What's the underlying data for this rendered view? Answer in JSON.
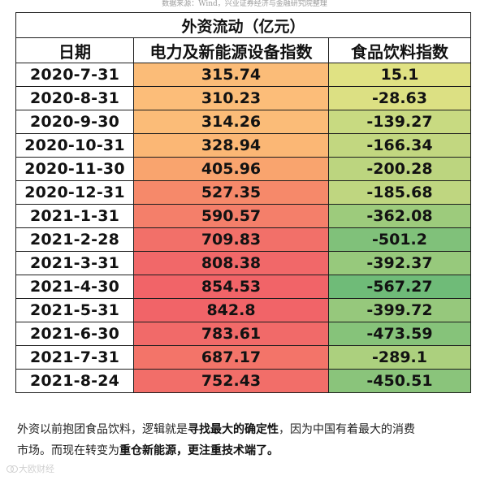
{
  "source_note": "数据来源：Wind，兴业证券经济与金融研究院整理",
  "table": {
    "caption": "外资流动（亿元）",
    "headers": [
      "日期",
      "电力及新能源设备指数",
      "食品饮料指数"
    ],
    "rows": [
      {
        "date": "2020-7-31",
        "power": "315.74",
        "food": "15.1",
        "power_color": "#fbbc78",
        "food_color": "#e0e283"
      },
      {
        "date": "2020-8-31",
        "power": "310.23",
        "food": "-28.63",
        "power_color": "#fcbd79",
        "food_color": "#dce083"
      },
      {
        "date": "2020-9-30",
        "power": "314.26",
        "food": "-139.27",
        "power_color": "#fbbc78",
        "food_color": "#c8da81"
      },
      {
        "date": "2020-10-31",
        "power": "328.94",
        "food": "-166.34",
        "power_color": "#fbb775",
        "food_color": "#c2d780"
      },
      {
        "date": "2020-11-30",
        "power": "405.96",
        "food": "-200.28",
        "power_color": "#f9a46e",
        "food_color": "#bcd57f"
      },
      {
        "date": "2020-12-31",
        "power": "527.35",
        "food": "-185.68",
        "power_color": "#f6896a",
        "food_color": "#bfd680"
      },
      {
        "date": "2021-1-31",
        "power": "590.57",
        "food": "-362.08",
        "power_color": "#f47f6a",
        "food_color": "#9dcb7c"
      },
      {
        "date": "2021-2-28",
        "power": "709.83",
        "food": "-501.2",
        "power_color": "#f27069",
        "food_color": "#80c17a"
      },
      {
        "date": "2021-3-31",
        "power": "808.38",
        "food": "-392.37",
        "power_color": "#f16869",
        "food_color": "#97c97c"
      },
      {
        "date": "2021-4-30",
        "power": "854.53",
        "food": "-567.27",
        "power_color": "#f16468",
        "food_color": "#6fbb78"
      },
      {
        "date": "2021-5-31",
        "power": "842.8",
        "food": "-399.72",
        "power_color": "#f16468",
        "food_color": "#96c87c"
      },
      {
        "date": "2021-6-30",
        "power": "783.61",
        "food": "-473.59",
        "power_color": "#f16a69",
        "food_color": "#86c37a"
      },
      {
        "date": "2021-7-31",
        "power": "687.17",
        "food": "-289.1",
        "power_color": "#f37469",
        "food_color": "#acd07e"
      },
      {
        "date": "2021-8-24",
        "power": "752.43",
        "food": "-450.51",
        "power_color": "#f26e69",
        "food_color": "#8ac47b"
      }
    ]
  },
  "commentary": {
    "line1_a": "外资以前抱团食品饮料，逻辑就是",
    "line1_b": "寻找最大的确定性",
    "line1_c": "，因为中国有着最大的消费",
    "line2_a": "市场。而现在转变为",
    "line2_b": "重仓新能源，更注重技术端了。"
  },
  "watermark": "大欧财经"
}
